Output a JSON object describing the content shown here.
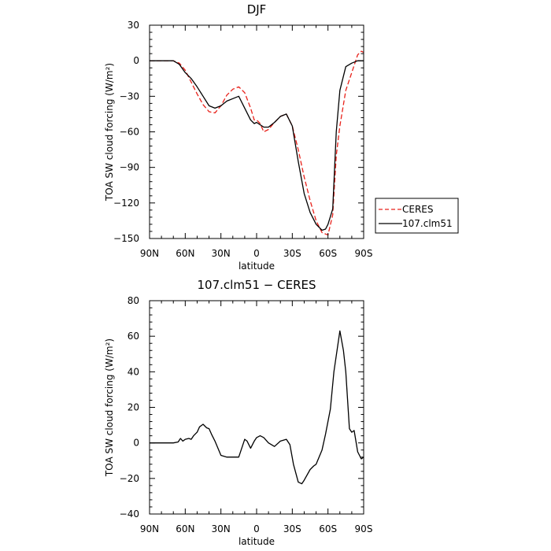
{
  "chart_data": [
    {
      "type": "line",
      "title": "DJF",
      "xlabel": "latitude",
      "ylabel": "TOA SW cloud forcing (W/m²)",
      "xlim": [
        90,
        -90
      ],
      "ylim": [
        -150,
        30
      ],
      "xtick_values": [
        90,
        60,
        30,
        0,
        -30,
        -60,
        -90
      ],
      "xtick_labels": [
        "90N",
        "60N",
        "30N",
        "0",
        "30S",
        "60S",
        "90S"
      ],
      "ytick_values": [
        -150,
        -120,
        -90,
        -60,
        -30,
        0,
        30
      ],
      "ytick_labels": [
        "−150",
        "−120",
        "−90",
        "−60",
        "−30",
        "0",
        "30"
      ],
      "legend_position": "right, outside plot",
      "series": [
        {
          "name": "CERES",
          "color": "#e8211a",
          "dash": "dashed",
          "x": [
            90,
            80,
            70,
            65,
            60,
            55,
            50,
            45,
            40,
            35,
            30,
            25,
            20,
            15,
            10,
            5,
            2,
            0,
            -3,
            -6,
            -10,
            -15,
            -20,
            -25,
            -30,
            -35,
            -40,
            -45,
            -50,
            -55,
            -60,
            -64,
            -67,
            -70,
            -75,
            -80,
            -85,
            -88,
            -90
          ],
          "y": [
            0,
            0,
            0,
            -2,
            -8,
            -18,
            -28,
            -37,
            -43,
            -44,
            -38,
            -29,
            -24,
            -22,
            -27,
            -40,
            -50,
            -50,
            -53,
            -60,
            -58,
            -52,
            -47,
            -45,
            -55,
            -75,
            -98,
            -118,
            -135,
            -145,
            -147,
            -130,
            -80,
            -55,
            -25,
            -10,
            5,
            8,
            7
          ]
        },
        {
          "name": "107.clm51",
          "color": "#000000",
          "dash": "solid",
          "x": [
            90,
            80,
            70,
            65,
            60,
            55,
            50,
            45,
            40,
            35,
            30,
            25,
            20,
            15,
            10,
            5,
            2,
            0,
            -3,
            -6,
            -10,
            -15,
            -20,
            -25,
            -30,
            -35,
            -40,
            -45,
            -50,
            -55,
            -58,
            -60,
            -64,
            -67,
            -70,
            -75,
            -80,
            -85,
            -90
          ],
          "y": [
            0,
            0,
            0,
            -3,
            -10,
            -15,
            -22,
            -30,
            -38,
            -40,
            -38,
            -34,
            -32,
            -30,
            -40,
            -50,
            -53,
            -52,
            -54,
            -56,
            -56,
            -52,
            -47,
            -45,
            -55,
            -85,
            -112,
            -128,
            -138,
            -143,
            -142,
            -138,
            -125,
            -60,
            -25,
            -5,
            -2,
            0,
            0
          ]
        }
      ]
    },
    {
      "type": "line",
      "title": "107.clm51 − CERES",
      "xlabel": "latitude",
      "ylabel": "TOA SW cloud forcing (W/m²)",
      "xlim": [
        90,
        -90
      ],
      "ylim": [
        -40,
        80
      ],
      "xtick_values": [
        90,
        60,
        30,
        0,
        -30,
        -60,
        -90
      ],
      "xtick_labels": [
        "90N",
        "60N",
        "30N",
        "0",
        "30S",
        "60S",
        "90S"
      ],
      "ytick_values": [
        -40,
        -20,
        0,
        20,
        40,
        60,
        80
      ],
      "ytick_labels": [
        "−40",
        "−20",
        "0",
        "20",
        "40",
        "60",
        "80"
      ],
      "series": [
        {
          "color": "#000000",
          "dash": "solid",
          "x": [
            90,
            80,
            70,
            66,
            64,
            62,
            60,
            57,
            55,
            53,
            50,
            48,
            45,
            42,
            40,
            38,
            35,
            30,
            25,
            20,
            15,
            10,
            8,
            5,
            2,
            0,
            -3,
            -6,
            -10,
            -15,
            -20,
            -25,
            -28,
            -31,
            -35,
            -38,
            -40,
            -45,
            -48,
            -50,
            -55,
            -58,
            -62,
            -65,
            -70,
            -73,
            -75,
            -78,
            -80,
            -82,
            -85,
            -88,
            -90
          ],
          "y": [
            0,
            0,
            0,
            0.5,
            2.5,
            1,
            2,
            2.5,
            2,
            4,
            6,
            9,
            10.5,
            8.5,
            8,
            5,
            1,
            -7,
            -8,
            -8,
            -8,
            2,
            1,
            -3,
            1,
            3,
            4,
            3,
            0,
            -2,
            1,
            2,
            -1,
            -12,
            -22,
            -23,
            -21,
            -15,
            -13,
            -12,
            -4,
            5,
            19,
            40,
            63,
            52,
            40,
            8,
            6,
            7,
            -5,
            -9,
            -8
          ]
        }
      ]
    }
  ],
  "legend": {
    "entries": [
      "CERES",
      "107.clm51"
    ]
  }
}
